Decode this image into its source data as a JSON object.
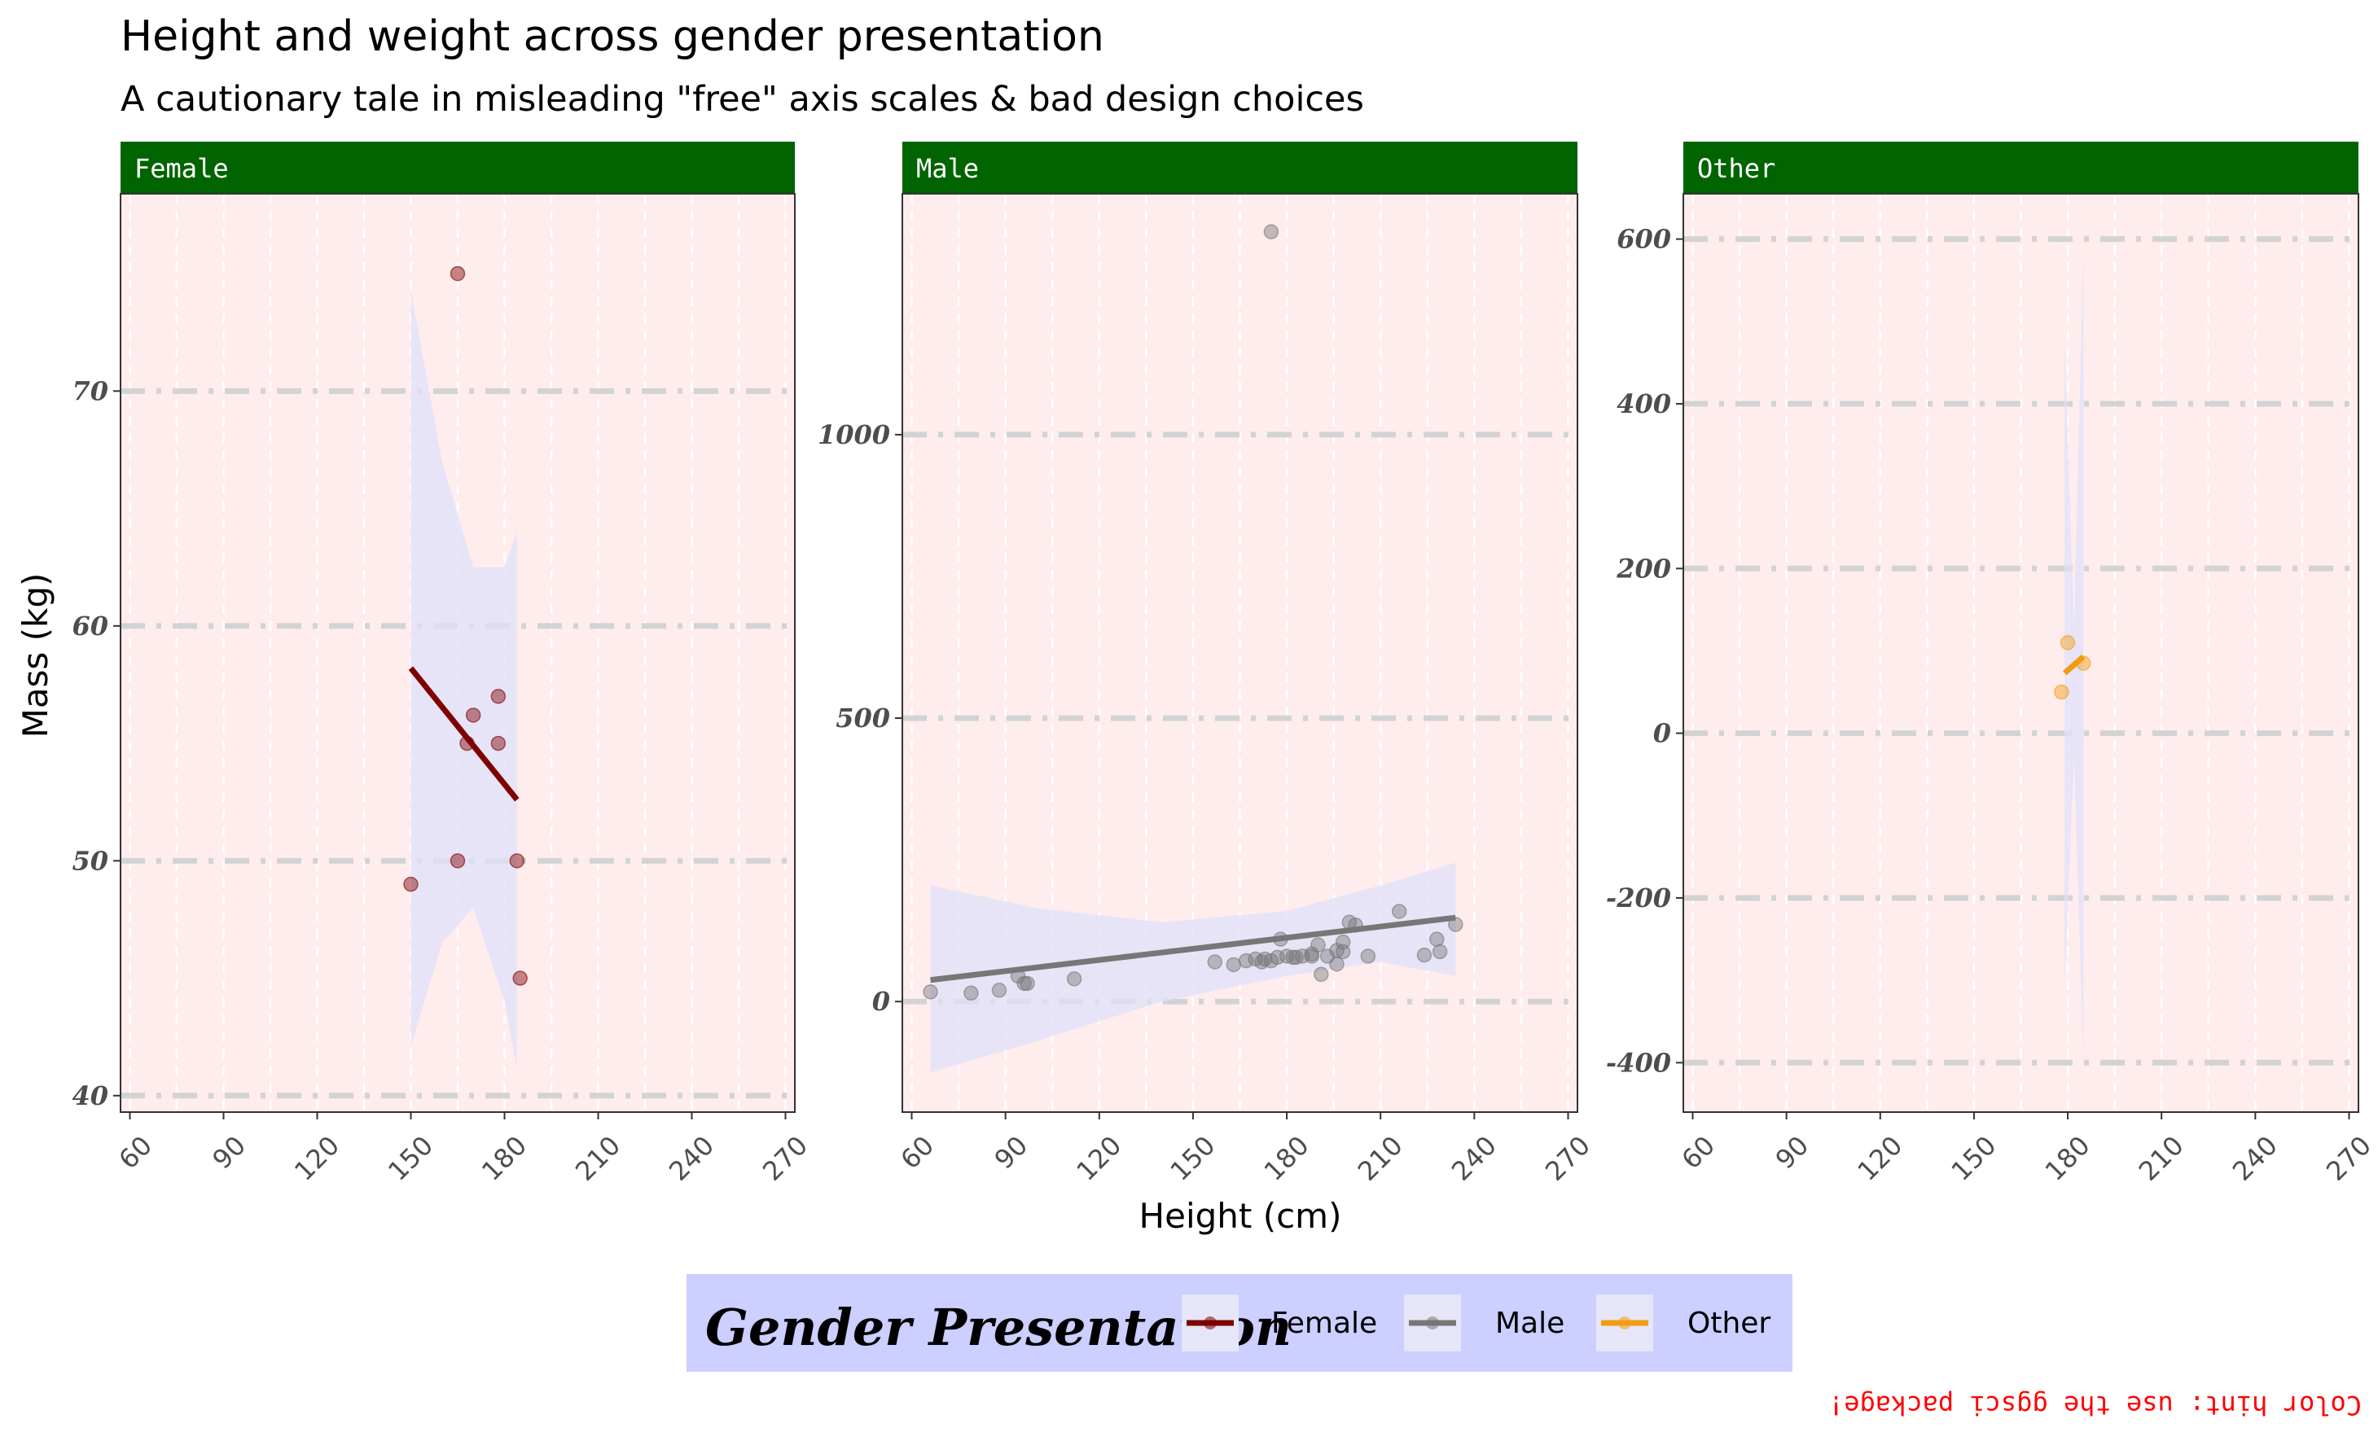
{
  "chart_data": {
    "type": "scatter",
    "title": "Height and weight across gender presentation",
    "subtitle": "A cautionary tale in misleading \"free\" axis scales & bad design choices",
    "xlabel": "Height (cm)",
    "ylabel": "Mass (kg)",
    "caption": "Color hint: use the ggsci package!",
    "legend": {
      "title": "Gender Presentation",
      "position": "bottom",
      "entries": [
        "Female",
        "Male",
        "Other"
      ]
    },
    "colors": {
      "Female": "#7f0000",
      "Male": "#777777",
      "Other": "#f39c12",
      "panel_bg": "#ffeded",
      "strip_bg": "#006400",
      "ribbon": "#e0e0fa",
      "legend_bg": "#cccfff",
      "grid_major_y": "#d3d3d3",
      "caption": "#ff0000"
    },
    "xlim": [
      57,
      273
    ],
    "x_ticks": [
      60,
      90,
      120,
      150,
      180,
      210,
      240,
      270
    ],
    "grid": true,
    "panels": [
      {
        "name": "Female",
        "ylim": [
          39.3,
          78.4
        ],
        "y_ticks": [
          40,
          50,
          60,
          70
        ],
        "points": [
          [
            150,
            49
          ],
          [
            165,
            75
          ],
          [
            165,
            50
          ],
          [
            168,
            55
          ],
          [
            170,
            56.2
          ],
          [
            178,
            57
          ],
          [
            178,
            55
          ],
          [
            184,
            50
          ],
          [
            185,
            45
          ]
        ],
        "trend": [
          [
            150,
            58.2
          ],
          [
            184,
            52.6
          ]
        ],
        "ribbon": {
          "x": [
            150,
            160,
            170,
            180,
            184
          ],
          "upper": [
            74.3,
            67,
            62.5,
            62.5,
            64
          ],
          "lower": [
            42.1,
            46.5,
            48,
            44,
            41.2
          ]
        }
      },
      {
        "name": "Male",
        "ylim": [
          -195,
          1425
        ],
        "y_ticks": [
          0,
          500,
          1000
        ],
        "points": [
          [
            66,
            17
          ],
          [
            79,
            15
          ],
          [
            88,
            20
          ],
          [
            94,
            45
          ],
          [
            96,
            32
          ],
          [
            97,
            32
          ],
          [
            112,
            40
          ],
          [
            157,
            70
          ],
          [
            163,
            65
          ],
          [
            167,
            72
          ],
          [
            170,
            75
          ],
          [
            172,
            70
          ],
          [
            173,
            75
          ],
          [
            175,
            1358
          ],
          [
            175,
            72
          ],
          [
            177,
            78
          ],
          [
            178,
            110
          ],
          [
            180,
            80
          ],
          [
            182,
            78
          ],
          [
            183,
            78
          ],
          [
            185,
            80
          ],
          [
            188,
            80
          ],
          [
            188,
            84
          ],
          [
            190,
            100
          ],
          [
            191,
            48
          ],
          [
            193,
            80
          ],
          [
            196,
            90
          ],
          [
            196,
            66
          ],
          [
            198,
            88
          ],
          [
            198,
            105
          ],
          [
            200,
            140
          ],
          [
            202,
            135
          ],
          [
            206,
            80
          ],
          [
            216,
            159
          ],
          [
            224,
            82
          ],
          [
            228,
            110
          ],
          [
            229,
            88
          ],
          [
            234,
            136
          ]
        ],
        "trend": [
          [
            66,
            38
          ],
          [
            234,
            148
          ]
        ],
        "ribbon": {
          "x": [
            66,
            100,
            140,
            180,
            210,
            234
          ],
          "upper": [
            205,
            165,
            140,
            160,
            205,
            245
          ],
          "lower": [
            -125,
            -70,
            0,
            45,
            70,
            45
          ]
        }
      },
      {
        "name": "Other",
        "ylim": [
          -460,
          655
        ],
        "y_ticks": [
          -400,
          -200,
          0,
          200,
          400,
          600
        ],
        "points": [
          [
            178,
            50
          ],
          [
            180,
            110
          ],
          [
            185,
            85
          ]
        ],
        "trend": [
          [
            179,
            73
          ],
          [
            185,
            93
          ]
        ],
        "ribbon": {
          "x": [
            179,
            182,
            185
          ],
          "upper": [
            475,
            130,
            585
          ],
          "lower": [
            -305,
            -30,
            -395
          ]
        }
      }
    ]
  }
}
